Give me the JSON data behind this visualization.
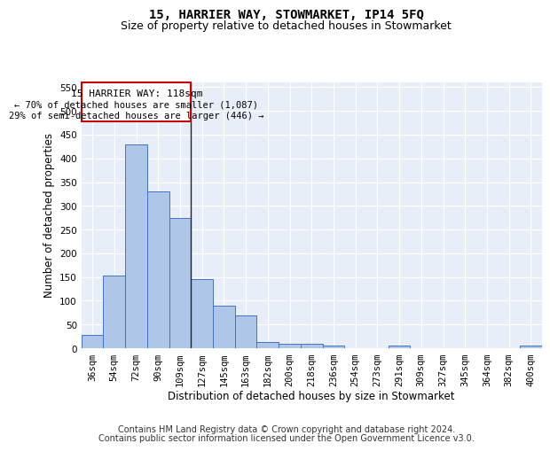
{
  "title1": "15, HARRIER WAY, STOWMARKET, IP14 5FQ",
  "title2": "Size of property relative to detached houses in Stowmarket",
  "xlabel": "Distribution of detached houses by size in Stowmarket",
  "ylabel": "Number of detached properties",
  "footnote1": "Contains HM Land Registry data © Crown copyright and database right 2024.",
  "footnote2": "Contains public sector information licensed under the Open Government Licence v3.0.",
  "categories": [
    "36sqm",
    "54sqm",
    "72sqm",
    "90sqm",
    "109sqm",
    "127sqm",
    "145sqm",
    "163sqm",
    "182sqm",
    "200sqm",
    "218sqm",
    "236sqm",
    "254sqm",
    "273sqm",
    "291sqm",
    "309sqm",
    "327sqm",
    "345sqm",
    "364sqm",
    "382sqm",
    "400sqm"
  ],
  "values": [
    28,
    153,
    430,
    330,
    275,
    145,
    90,
    70,
    13,
    10,
    10,
    5,
    0,
    0,
    5,
    0,
    0,
    0,
    0,
    0,
    5
  ],
  "bar_color": "#aec6e8",
  "bar_edge_color": "#4472c4",
  "property_line_x": 4.5,
  "ylim": [
    0,
    560
  ],
  "yticks": [
    0,
    50,
    100,
    150,
    200,
    250,
    300,
    350,
    400,
    450,
    500,
    550
  ],
  "annotation_line1": "15 HARRIER WAY: 118sqm",
  "annotation_line2": "← 70% of detached houses are smaller (1,087)",
  "annotation_line3": "29% of semi-detached houses are larger (446) →",
  "annotation_box_color": "#ffffff",
  "annotation_box_edge": "#cc0000",
  "bg_color": "#e8eef8",
  "grid_color": "#ffffff",
  "title1_fontsize": 10,
  "title2_fontsize": 9,
  "label_fontsize": 8.5,
  "tick_fontsize": 7.5,
  "footnote_fontsize": 7,
  "ann_fontsize": 8
}
